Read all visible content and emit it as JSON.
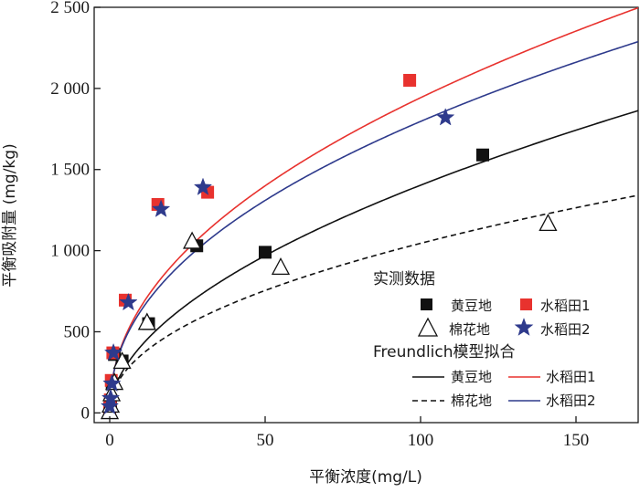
{
  "chart_data": {
    "type": "scatter",
    "xlabel": "平衡浓度(mg/L)",
    "ylabel": "平衡吸附量 (mg/kg)",
    "xlim": [
      -5,
      170
    ],
    "ylim": [
      -60,
      2500
    ],
    "x_ticks": [
      0,
      50,
      100,
      150
    ],
    "x_tick_labels": [
      "0",
      "50",
      "100",
      "150"
    ],
    "y_ticks": [
      0,
      500,
      1000,
      1500,
      2000,
      2500
    ],
    "y_tick_labels": [
      "0",
      "500",
      "1 000",
      "1 500",
      "2 000",
      "2 500"
    ],
    "grid": false,
    "legend": {
      "placement": "bottom-right",
      "measured_title": "实测数据",
      "fit_title": "Freundlich模型拟合"
    },
    "series": [
      {
        "name": "黄豆地",
        "kind": "measured",
        "marker": "square",
        "color": "#111111",
        "points": [
          [
            0,
            20
          ],
          [
            0.3,
            60
          ],
          [
            0.8,
            180
          ],
          [
            1.5,
            360
          ],
          [
            4,
            320
          ],
          [
            12.5,
            550
          ],
          [
            28,
            1030
          ],
          [
            50,
            990
          ],
          [
            120,
            1590
          ]
        ]
      },
      {
        "name": "水稻田1",
        "kind": "measured",
        "marker": "square",
        "color": "#e8322e",
        "points": [
          [
            0,
            30
          ],
          [
            0.2,
            80
          ],
          [
            0.5,
            200
          ],
          [
            1,
            370
          ],
          [
            5,
            695
          ],
          [
            15.5,
            1285
          ],
          [
            31.5,
            1360
          ],
          [
            96.5,
            2050
          ]
        ]
      },
      {
        "name": "棉花地",
        "kind": "measured",
        "marker": "triangle",
        "color": "#111111",
        "points": [
          [
            0,
            10
          ],
          [
            0.3,
            50
          ],
          [
            0.6,
            120
          ],
          [
            1.5,
            190
          ],
          [
            4,
            320
          ],
          [
            12,
            560
          ],
          [
            26.5,
            1060
          ],
          [
            55,
            900
          ],
          [
            141,
            1170
          ]
        ]
      },
      {
        "name": "水稻田2",
        "kind": "measured",
        "marker": "star",
        "color": "#2e3a8c",
        "points": [
          [
            0,
            40
          ],
          [
            0.3,
            90
          ],
          [
            0.7,
            180
          ],
          [
            1.2,
            370
          ],
          [
            6,
            680
          ],
          [
            16.5,
            1255
          ],
          [
            30,
            1390
          ],
          [
            108,
            1820
          ]
        ]
      }
    ],
    "fits": [
      {
        "name": "黄豆地",
        "kind": "fit",
        "style": "solid",
        "color": "#111111",
        "K": 120,
        "n": 0.534
      },
      {
        "name": "水稻田1",
        "kind": "fit",
        "style": "solid",
        "color": "#e8322e",
        "K": 220,
        "n": 0.473
      },
      {
        "name": "棉花地",
        "kind": "fit",
        "style": "dashed",
        "color": "#111111",
        "K": 120,
        "n": 0.47
      },
      {
        "name": "水稻田2",
        "kind": "fit",
        "style": "solid",
        "color": "#2e3a8c",
        "K": 220,
        "n": 0.456
      }
    ]
  }
}
